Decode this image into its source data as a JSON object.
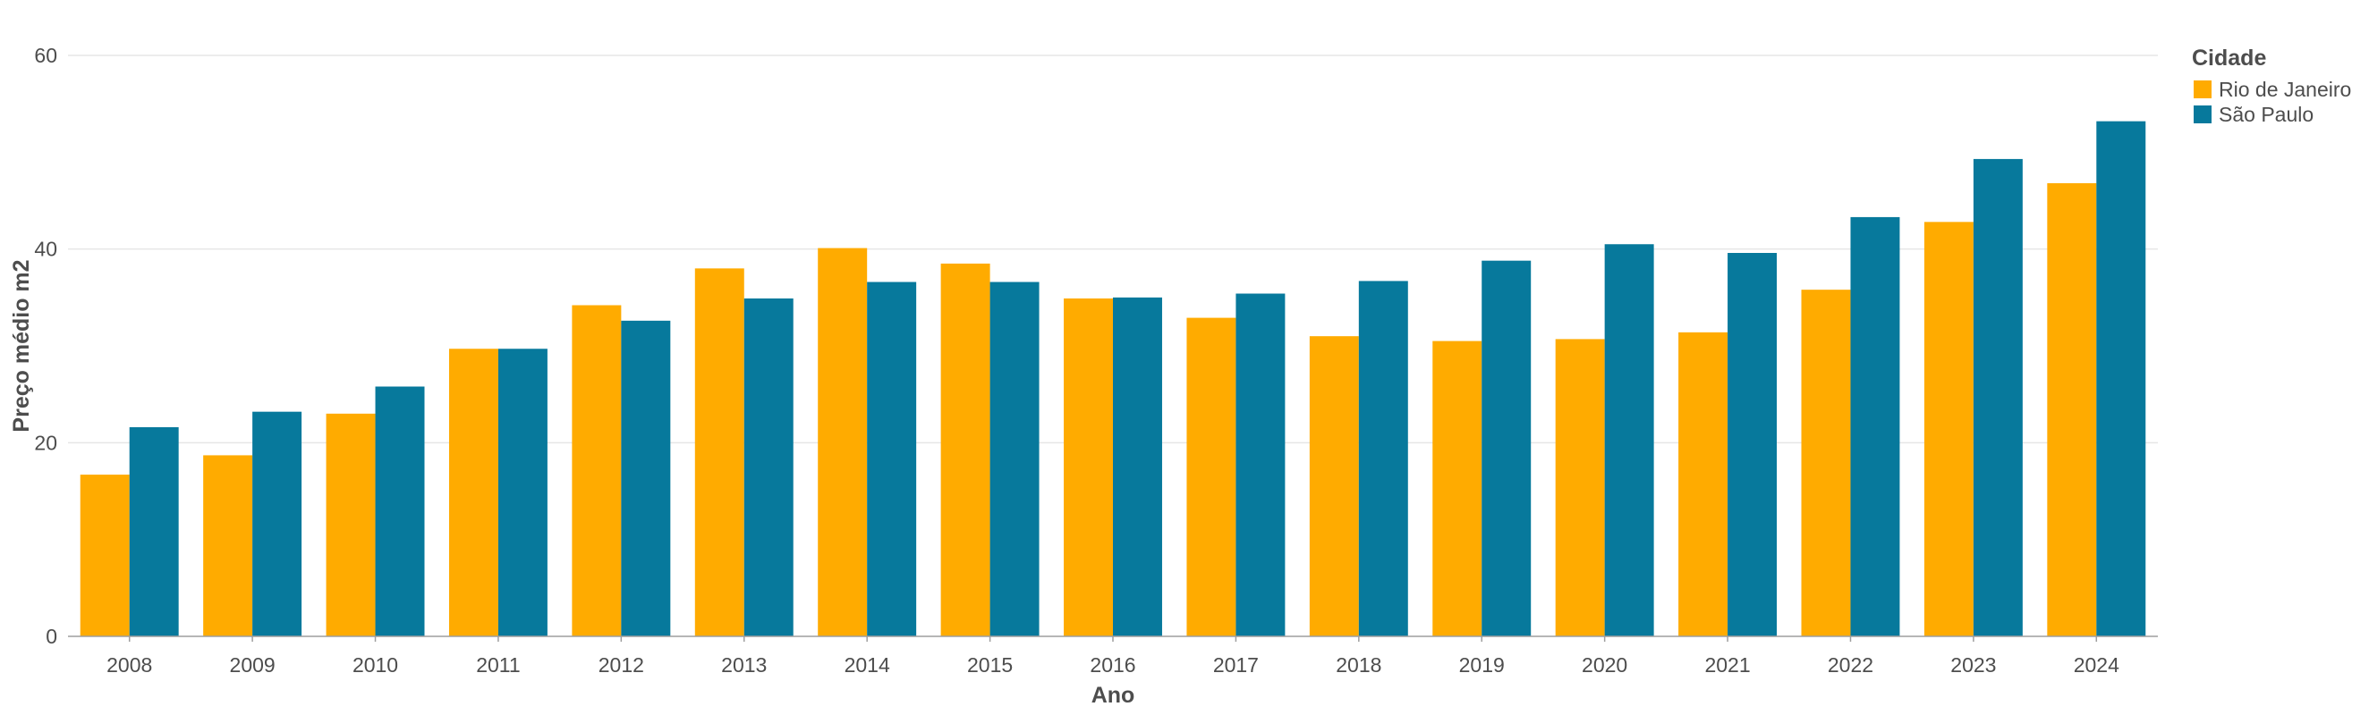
{
  "chart_data": {
    "type": "bar",
    "xlabel": "Ano",
    "ylabel": "Preço médio m2",
    "ylim": [
      0,
      60
    ],
    "yticks": [
      0,
      20,
      40,
      60
    ],
    "grid": true,
    "legend_title": "Cidade",
    "legend_position": "top-right",
    "categories": [
      "2008",
      "2009",
      "2010",
      "2011",
      "2012",
      "2013",
      "2014",
      "2015",
      "2016",
      "2017",
      "2018",
      "2019",
      "2020",
      "2021",
      "2022",
      "2023",
      "2024"
    ],
    "series": [
      {
        "name": "Rio de Janeiro",
        "color": "#FFAB00",
        "values": [
          16.7,
          18.7,
          23.0,
          29.7,
          34.2,
          38.0,
          40.1,
          38.5,
          34.9,
          32.9,
          31.0,
          30.5,
          30.7,
          31.4,
          35.8,
          42.8,
          46.8
        ]
      },
      {
        "name": "São Paulo",
        "color": "#07799C",
        "values": [
          21.6,
          23.2,
          25.8,
          29.7,
          32.6,
          34.9,
          36.6,
          36.6,
          35.0,
          35.4,
          36.7,
          38.8,
          40.5,
          39.6,
          43.3,
          49.3,
          53.2
        ]
      }
    ]
  }
}
